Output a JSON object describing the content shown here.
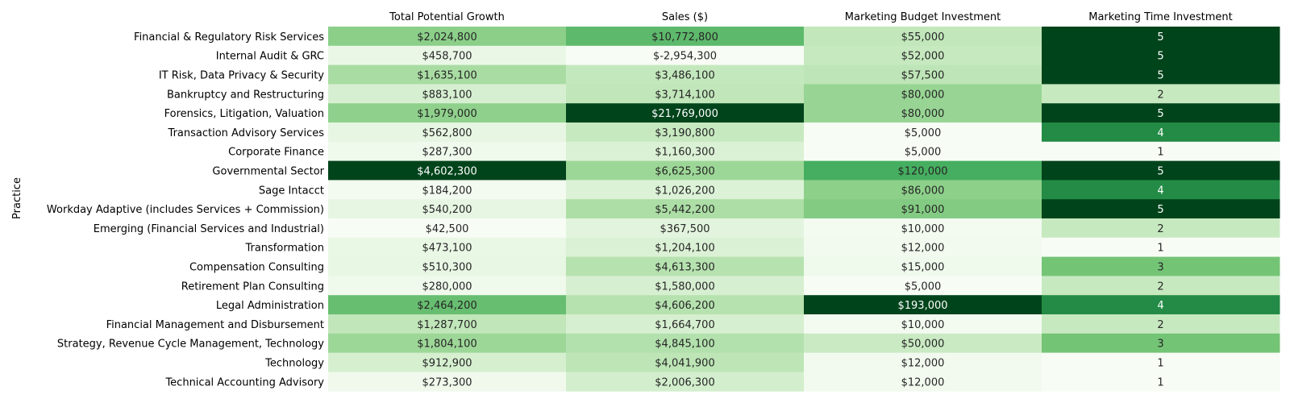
{
  "chart_data": {
    "type": "heatmap",
    "ylabel": "Practice",
    "columns": [
      "Total Potential Growth",
      "Sales ($)",
      "Marketing Budget Investment",
      "Marketing Time Investment"
    ],
    "rows": [
      "Financial & Regulatory Risk Services",
      "Internal Audit & GRC",
      "IT Risk, Data Privacy & Security",
      "Bankruptcy and Restructuring",
      "Forensics, Litigation, Valuation",
      "Transaction Advisory Services",
      "Corporate Finance ",
      "Governmental Sector",
      "Sage Intacct",
      "Workday Adaptive (includes Services + Commission)",
      "Emerging (Financial Services and Industrial)",
      "Transformation",
      "Compensation Consulting",
      "Retirement Plan Consulting",
      "Legal Administration",
      "Financial Management and Disbursement",
      "Strategy, Revenue Cycle Management, Technology",
      "Technology",
      "Technical Accounting Advisory"
    ],
    "values": [
      [
        2024800,
        10772800,
        55000,
        5
      ],
      [
        458700,
        -2954300,
        52000,
        5
      ],
      [
        1635100,
        3486100,
        57500,
        5
      ],
      [
        883100,
        3714100,
        80000,
        2
      ],
      [
        1979000,
        21769000,
        80000,
        5
      ],
      [
        562800,
        3190800,
        5000,
        4
      ],
      [
        287300,
        1160300,
        5000,
        1
      ],
      [
        4602300,
        6625300,
        120000,
        5
      ],
      [
        184200,
        1026200,
        86000,
        4
      ],
      [
        540200,
        5442200,
        91000,
        5
      ],
      [
        42500,
        367500,
        10000,
        2
      ],
      [
        473100,
        1204100,
        12000,
        1
      ],
      [
        510300,
        4613300,
        15000,
        3
      ],
      [
        280000,
        1580000,
        5000,
        2
      ],
      [
        2464200,
        4606200,
        193000,
        4
      ],
      [
        1287700,
        1664700,
        10000,
        2
      ],
      [
        1804100,
        4845100,
        50000,
        3
      ],
      [
        912900,
        4041900,
        12000,
        1
      ],
      [
        273300,
        2006300,
        12000,
        1
      ]
    ],
    "labels": [
      [
        "$2,024,800",
        "$10,772,800",
        "$55,000",
        "5"
      ],
      [
        "$458,700",
        "$-2,954,300",
        "$52,000",
        "5"
      ],
      [
        "$1,635,100",
        "$3,486,100",
        "$57,500",
        "5"
      ],
      [
        "$883,100",
        "$3,714,100",
        "$80,000",
        "2"
      ],
      [
        "$1,979,000",
        "$21,769,000",
        "$80,000",
        "5"
      ],
      [
        "$562,800",
        "$3,190,800",
        "$5,000",
        "4"
      ],
      [
        "$287,300",
        "$1,160,300",
        "$5,000",
        "1"
      ],
      [
        "$4,602,300",
        "$6,625,300",
        "$120,000",
        "5"
      ],
      [
        "$184,200",
        "$1,026,200",
        "$86,000",
        "4"
      ],
      [
        "$540,200",
        "$5,442,200",
        "$91,000",
        "5"
      ],
      [
        "$42,500",
        "$367,500",
        "$10,000",
        "2"
      ],
      [
        "$473,100",
        "$1,204,100",
        "$12,000",
        "1"
      ],
      [
        "$510,300",
        "$4,613,300",
        "$15,000",
        "3"
      ],
      [
        "$280,000",
        "$1,580,000",
        "$5,000",
        "2"
      ],
      [
        "$2,464,200",
        "$4,606,200",
        "$193,000",
        "4"
      ],
      [
        "$1,287,700",
        "$1,664,700",
        "$10,000",
        "2"
      ],
      [
        "$1,804,100",
        "$4,845,100",
        "$50,000",
        "3"
      ],
      [
        "$912,900",
        "$4,041,900",
        "$12,000",
        "1"
      ],
      [
        "$273,300",
        "$2,006,300",
        "$12,000",
        "1"
      ]
    ],
    "colormap": "Greens",
    "scale": "per-column",
    "grid": false
  }
}
